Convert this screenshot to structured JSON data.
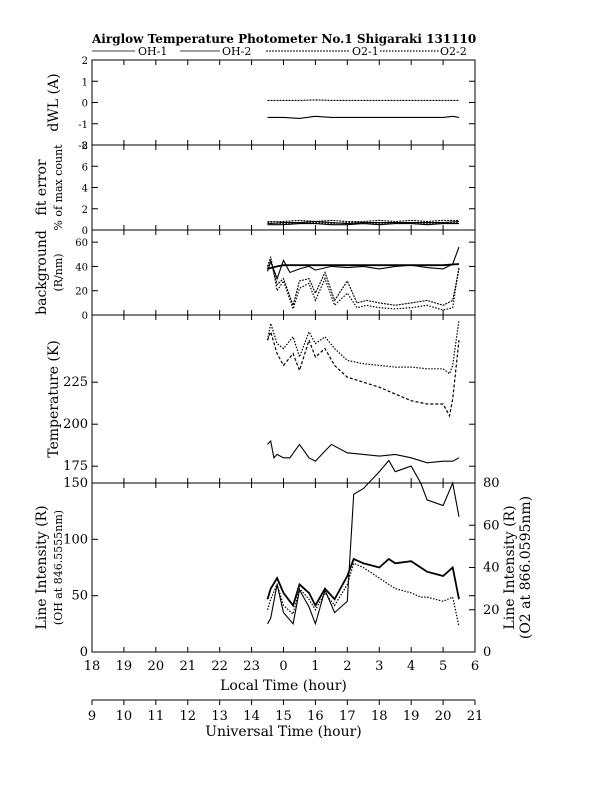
{
  "title": "Airglow Temperature Photometer No.1  Shigaraki  131110",
  "legend": [
    {
      "label": "OH-1",
      "style": "solid-thin"
    },
    {
      "label": "OH-2",
      "style": "solid-thin"
    },
    {
      "label": "O2-1",
      "style": "wavy"
    },
    {
      "label": "O2-2",
      "style": "dotted"
    }
  ],
  "chart_data": [
    {
      "type": "line",
      "panel": "dwl",
      "ylabel": "dWL (A)",
      "ylim": [
        -2,
        2
      ],
      "yticks": [
        "-2",
        "-1",
        "0",
        "1",
        "2"
      ],
      "series": [
        {
          "name": "OH-1",
          "style": "solid",
          "x": [
            23.5,
            24.0,
            24.5,
            25.0,
            25.5,
            26.0,
            26.5,
            27.0,
            27.5,
            28.0,
            28.5,
            29.0,
            29.3,
            29.5
          ],
          "y": [
            -0.7,
            -0.7,
            -0.75,
            -0.65,
            -0.7,
            -0.7,
            -0.7,
            -0.7,
            -0.7,
            -0.7,
            -0.7,
            -0.7,
            -0.65,
            -0.7
          ]
        },
        {
          "name": "O2-1",
          "style": "wavy",
          "x": [
            23.5,
            24.0,
            24.5,
            25.0,
            25.5,
            26.0,
            26.5,
            27.0,
            27.5,
            28.0,
            28.5,
            29.0,
            29.5
          ],
          "y": [
            0.1,
            0.1,
            0.1,
            0.12,
            0.1,
            0.1,
            0.1,
            0.1,
            0.1,
            0.1,
            0.1,
            0.1,
            0.1
          ]
        }
      ]
    },
    {
      "type": "line",
      "panel": "fit-error",
      "ylabel": "fit error",
      "ylabel2": "% of max count",
      "ylim": [
        0,
        8
      ],
      "yticks": [
        "0",
        "2",
        "4",
        "6",
        "8"
      ],
      "series": [
        {
          "name": "OH-1",
          "style": "solid",
          "x": [
            23.5,
            24.0,
            24.5,
            25.0,
            25.5,
            26.0,
            26.5,
            27.0,
            27.5,
            28.0,
            28.5,
            29.0,
            29.5
          ],
          "y": [
            0.6,
            0.7,
            0.7,
            0.8,
            0.7,
            0.6,
            0.7,
            0.7,
            0.7,
            0.7,
            0.7,
            0.7,
            0.8
          ]
        },
        {
          "name": "OH-2",
          "style": "solid",
          "x": [
            23.5,
            24.0,
            24.5,
            25.0,
            25.5,
            26.0,
            26.5,
            27.0,
            27.5,
            28.0,
            28.5,
            29.0,
            29.5
          ],
          "y": [
            0.5,
            0.5,
            0.6,
            0.6,
            0.5,
            0.5,
            0.6,
            0.5,
            0.6,
            0.6,
            0.5,
            0.6,
            0.6
          ]
        },
        {
          "name": "O2-1",
          "style": "wavy",
          "x": [
            23.5,
            24.0,
            24.5,
            25.0,
            25.5,
            26.0,
            26.5,
            27.0,
            27.5,
            28.0,
            28.5,
            29.0,
            29.5
          ],
          "y": [
            0.8,
            0.8,
            0.9,
            0.8,
            0.9,
            0.8,
            0.8,
            0.9,
            0.8,
            0.9,
            0.8,
            0.9,
            0.9
          ]
        },
        {
          "name": "O2-2",
          "style": "dotted",
          "x": [
            23.5,
            24.0,
            24.5,
            25.0,
            25.5,
            26.0,
            26.5,
            27.0,
            27.5,
            28.0,
            28.5,
            29.0,
            29.5
          ],
          "y": [
            0.7,
            0.6,
            0.7,
            0.7,
            0.6,
            0.7,
            0.7,
            0.6,
            0.7,
            0.7,
            0.6,
            0.7,
            0.7
          ]
        }
      ]
    },
    {
      "type": "line",
      "panel": "background",
      "ylabel": "background",
      "ylabel2": "(R/nm)",
      "ylim": [
        0,
        70
      ],
      "yticks": [
        "0",
        "20",
        "40",
        "60"
      ],
      "series": [
        {
          "name": "OH-1",
          "style": "solid",
          "x": [
            23.5,
            23.6,
            23.8,
            24.0,
            24.2,
            24.5,
            24.8,
            25.0,
            25.5,
            26.0,
            26.5,
            27.0,
            27.5,
            28.0,
            28.5,
            29.0,
            29.3,
            29.5
          ],
          "y": [
            36,
            44,
            30,
            45,
            35,
            38,
            40,
            37,
            40,
            39,
            40,
            38,
            40,
            41,
            39,
            38,
            42,
            56
          ]
        },
        {
          "name": "OH-2",
          "style": "solid-thick",
          "x": [
            23.5,
            23.8,
            24.0,
            24.5,
            25.0,
            25.5,
            26.0,
            26.5,
            27.0,
            27.5,
            28.0,
            28.5,
            29.0,
            29.5
          ],
          "y": [
            38,
            40,
            41,
            41,
            41,
            41,
            41,
            41,
            41,
            41,
            41,
            41,
            41,
            42
          ]
        },
        {
          "name": "O2-1",
          "style": "wavy",
          "x": [
            23.5,
            23.6,
            23.8,
            24.0,
            24.3,
            24.5,
            24.8,
            25.0,
            25.3,
            25.6,
            26.0,
            26.3,
            26.6,
            27.0,
            27.5,
            28.0,
            28.5,
            29.0,
            29.3,
            29.5
          ],
          "y": [
            38,
            45,
            25,
            30,
            8,
            28,
            30,
            18,
            35,
            12,
            28,
            10,
            12,
            10,
            8,
            10,
            12,
            8,
            12,
            38
          ]
        },
        {
          "name": "O2-2",
          "style": "dotted",
          "x": [
            23.5,
            23.6,
            23.8,
            24.0,
            24.3,
            24.5,
            24.8,
            25.0,
            25.3,
            25.6,
            26.0,
            26.3,
            26.6,
            27.0,
            27.5,
            28.0,
            28.5,
            29.0,
            29.3,
            29.5
          ],
          "y": [
            40,
            48,
            20,
            28,
            5,
            22,
            26,
            12,
            30,
            8,
            18,
            6,
            8,
            6,
            5,
            6,
            8,
            4,
            6,
            40
          ]
        }
      ]
    },
    {
      "type": "line",
      "panel": "temperature",
      "ylabel": "Temperature (K)",
      "ylim": [
        165,
        265
      ],
      "yticks": [
        "175",
        "200",
        "225"
      ],
      "series": [
        {
          "name": "OH-1",
          "style": "solid",
          "x": [
            23.5,
            23.6,
            23.7,
            23.8,
            24.0,
            24.2,
            24.5,
            24.8,
            25.0,
            25.2,
            25.5,
            26.0,
            26.5,
            27.0,
            27.5,
            28.0,
            28.5,
            29.0,
            29.3,
            29.5
          ],
          "y": [
            188,
            190,
            180,
            182,
            180,
            180,
            188,
            180,
            178,
            182,
            188,
            183,
            182,
            181,
            182,
            180,
            177,
            178,
            178,
            180
          ]
        },
        {
          "name": "O2-1",
          "style": "dashed",
          "x": [
            23.5,
            23.6,
            23.8,
            24.0,
            24.3,
            24.5,
            24.8,
            25.0,
            25.3,
            25.6,
            26.0,
            26.5,
            27.0,
            27.5,
            28.0,
            28.5,
            29.0,
            29.2,
            29.3,
            29.5
          ],
          "y": [
            250,
            255,
            242,
            235,
            242,
            232,
            250,
            240,
            245,
            235,
            228,
            225,
            222,
            218,
            214,
            212,
            212,
            205,
            215,
            250
          ]
        },
        {
          "name": "O2-2",
          "style": "dotted",
          "x": [
            23.5,
            23.6,
            23.8,
            24.0,
            24.3,
            24.5,
            24.8,
            25.0,
            25.3,
            25.6,
            26.0,
            26.5,
            27.0,
            27.5,
            28.0,
            28.5,
            29.0,
            29.2,
            29.3,
            29.5
          ],
          "y": [
            250,
            260,
            248,
            245,
            252,
            240,
            255,
            248,
            252,
            245,
            238,
            236,
            235,
            234,
            234,
            233,
            233,
            230,
            235,
            262
          ]
        }
      ]
    },
    {
      "type": "line",
      "panel": "line-intensity",
      "ylabel": "Line Intensity (R)",
      "ylabel2": "(OH at 846.5555nm)",
      "ylim": [
        0,
        150
      ],
      "yticks": [
        "0",
        "50",
        "100",
        "150"
      ],
      "y2label": "Line Intensity (R)",
      "y2label2": "(O2 at 866.0595nm)",
      "y2lim": [
        0,
        80
      ],
      "y2ticks": [
        "0",
        "20",
        "40",
        "60",
        "80"
      ],
      "series": [
        {
          "name": "OH-1",
          "style": "solid",
          "axis": "left",
          "x": [
            23.5,
            23.6,
            23.8,
            24.0,
            24.3,
            24.5,
            24.8,
            25.0,
            25.3,
            25.6,
            26.0,
            26.2,
            26.5,
            27.0,
            27.3,
            27.5,
            28.0,
            28.3,
            28.5,
            29.0,
            29.3,
            29.5
          ],
          "y": [
            25,
            30,
            60,
            35,
            25,
            55,
            40,
            25,
            55,
            35,
            45,
            140,
            145,
            160,
            170,
            160,
            165,
            150,
            135,
            130,
            150,
            120
          ]
        },
        {
          "name": "OH-2",
          "style": "solid-thick",
          "axis": "right",
          "x": [
            23.5,
            23.6,
            23.8,
            24.0,
            24.3,
            24.5,
            24.8,
            25.0,
            25.3,
            25.6,
            26.0,
            26.2,
            26.5,
            27.0,
            27.3,
            27.5,
            28.0,
            28.3,
            28.5,
            29.0,
            29.3,
            29.5
          ],
          "y": [
            25,
            30,
            35,
            28,
            22,
            32,
            28,
            22,
            30,
            25,
            36,
            44,
            42,
            40,
            44,
            42,
            43,
            40,
            38,
            36,
            40,
            25
          ]
        },
        {
          "name": "O2-1",
          "style": "dotted",
          "axis": "right",
          "x": [
            23.5,
            23.6,
            23.8,
            24.0,
            24.3,
            24.5,
            24.8,
            25.0,
            25.3,
            25.6,
            26.0,
            26.2,
            26.5,
            27.0,
            27.3,
            27.5,
            28.0,
            28.3,
            28.5,
            29.0,
            29.3,
            29.5
          ],
          "y": [
            20,
            25,
            32,
            22,
            18,
            30,
            25,
            20,
            28,
            22,
            32,
            42,
            40,
            35,
            32,
            30,
            28,
            26,
            26,
            24,
            26,
            12
          ]
        }
      ]
    }
  ],
  "shared_x": {
    "xlim": [
      18,
      30
    ],
    "local_time_label": "Local Time (hour)",
    "local_time_ticks": [
      "18",
      "19",
      "20",
      "21",
      "22",
      "23",
      "0",
      "1",
      "2",
      "3",
      "4",
      "5",
      "6"
    ],
    "universal_time_label": "Universal Time (hour)",
    "universal_time_ticks": [
      "9",
      "10",
      "11",
      "12",
      "13",
      "14",
      "15",
      "16",
      "17",
      "18",
      "19",
      "20",
      "21"
    ]
  }
}
